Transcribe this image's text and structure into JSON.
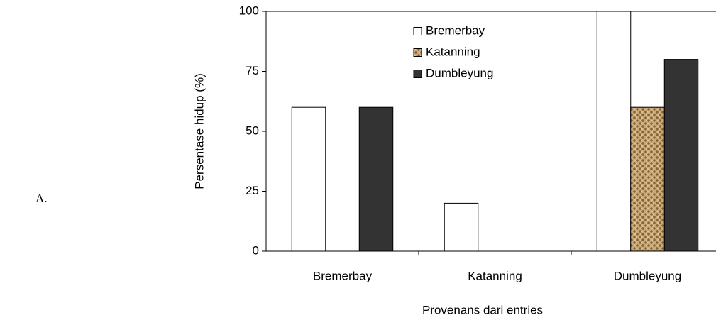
{
  "chart_data": {
    "type": "bar",
    "annotation": "A.",
    "ylabel": "Persentase hidup (%)",
    "xlabel": "Provenans dari entries",
    "categories": [
      "Bremerbay",
      "Katanning",
      "Dumbleyung"
    ],
    "series": [
      {
        "name": "Bremerbay",
        "color": "#ffffff",
        "values": [
          60,
          20,
          100
        ]
      },
      {
        "name": "Katanning",
        "color": "#c9a977",
        "values": [
          0,
          0,
          60
        ]
      },
      {
        "name": "Dumbleyung",
        "color": "#333333",
        "values": [
          60,
          0,
          80
        ]
      }
    ],
    "ylim": [
      0,
      100
    ],
    "yticks": [
      0,
      25,
      50,
      75,
      100
    ],
    "grid": false,
    "legend": "top"
  }
}
